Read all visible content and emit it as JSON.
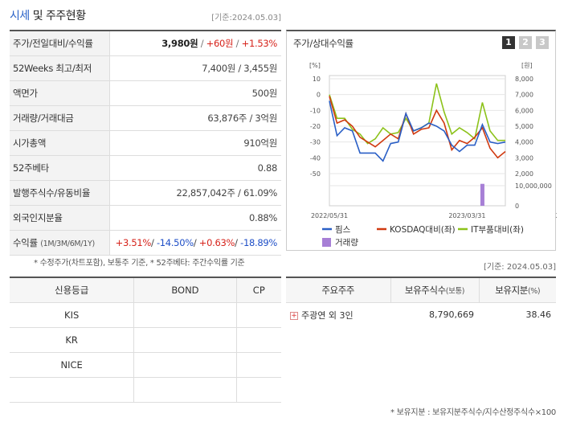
{
  "header": {
    "title_accent": "시세",
    "title_rest": "및 주주현황",
    "basis": "[기준:2024.05.03]"
  },
  "market": [
    {
      "label": "주가/전일대비/수익률",
      "value_main": "3,980원",
      "sep1": " / ",
      "value_change": "+60원",
      "sep2": " / ",
      "value_rate": "+1.53%"
    },
    {
      "label": "52Weeks 최고/최저",
      "value": "7,400원 / 3,455원"
    },
    {
      "label": "액면가",
      "value": "500원"
    },
    {
      "label": "거래량/거래대금",
      "value": "63,876주 / 3억원"
    },
    {
      "label": "시가총액",
      "value": "910억원"
    },
    {
      "label": "52주베타",
      "value": "0.88"
    },
    {
      "label": "발행주식수/유동비율",
      "value": "22,857,042주 / 61.09%"
    },
    {
      "label": "외국인지분율",
      "value": "0.88%"
    }
  ],
  "returns": {
    "label": "수익률",
    "period": "(1M/3M/6M/1Y)",
    "r1m": "+3.51%",
    "r3m": "-14.50%",
    "r6m": "+0.63%",
    "r1y": "-18.89%"
  },
  "footnote_left": "* 수정주가(차트포함), 보통주 기준, * 52주베타: 주간수익률 기준",
  "chart_panel": {
    "title": "주가/상대수익률",
    "pages": [
      "1",
      "2",
      "3"
    ],
    "active_page": 0
  },
  "chart_data": {
    "type": "line",
    "left_unit": "[%]",
    "right_unit": "[원]",
    "left_ticks": [
      "10",
      "0",
      "-10",
      "-20",
      "-30",
      "-40",
      "-50"
    ],
    "left_range": [
      -50,
      10
    ],
    "right_ticks": [
      "8,000",
      "7,000",
      "6,000",
      "5,000",
      "4,000",
      "3,000",
      "2,000"
    ],
    "right_range": [
      2000,
      8000
    ],
    "volume_tick_top": "10,000,000",
    "volume_tick_bottom": "0",
    "volume_range": [
      0,
      12500000
    ],
    "x_labels": [
      "2022/05/31",
      "2023/03/31",
      "2024/01/31"
    ],
    "x_label_positions": [
      0,
      18,
      32
    ],
    "series": [
      {
        "name": "핌스",
        "color": "#2a5fc6",
        "values": [
          -4,
          -26,
          -21,
          -23,
          -37,
          -37,
          -37,
          -42,
          -31,
          -30,
          -12,
          -23,
          -21,
          -18,
          -20,
          -23,
          -32,
          -36,
          -32,
          -32,
          -19,
          -30,
          -31,
          -30
        ]
      },
      {
        "name": "KOSDAQ대비(좌)",
        "color": "#d03a10",
        "values": [
          -1,
          -18,
          -16,
          -20,
          -27,
          -30,
          -33,
          -29,
          -25,
          -28,
          -12,
          -25,
          -22,
          -21,
          -10,
          -18,
          -35,
          -29,
          -31,
          -27,
          -21,
          -34,
          -40,
          -36
        ]
      },
      {
        "name": "IT부품대비(좌)",
        "color": "#8cc21a",
        "values": [
          0,
          -15,
          -15,
          -22,
          -25,
          -31,
          -28,
          -21,
          -25,
          -24,
          -15,
          -23,
          -21,
          -18,
          7,
          -11,
          -25,
          -21,
          -24,
          -28,
          -5,
          -23,
          -29,
          -29
        ]
      }
    ],
    "volume": {
      "name": "거래량",
      "color": "#a77fd6",
      "bar_index": 20,
      "value": 11000000
    }
  },
  "basis_right": "[기준: 2024.05.03]",
  "credit": {
    "headers": [
      "신용등급",
      "BOND",
      "CP"
    ],
    "rows": [
      [
        "KIS",
        "",
        ""
      ],
      [
        "KR",
        "",
        ""
      ],
      [
        "NICE",
        "",
        ""
      ],
      [
        "",
        "",
        ""
      ]
    ]
  },
  "holders": {
    "headers": {
      "h1": "주요주주",
      "h2": "보유주식수",
      "h2s": "(보통)",
      "h3": "보유지분",
      "h3s": "(%)"
    },
    "rows": [
      {
        "name": "주광연 외 3인",
        "shares": "8,790,669",
        "pct": "38.46"
      }
    ]
  },
  "footnote_right": "* 보유지분 : 보유지분주식수/지수산정주식수×100"
}
